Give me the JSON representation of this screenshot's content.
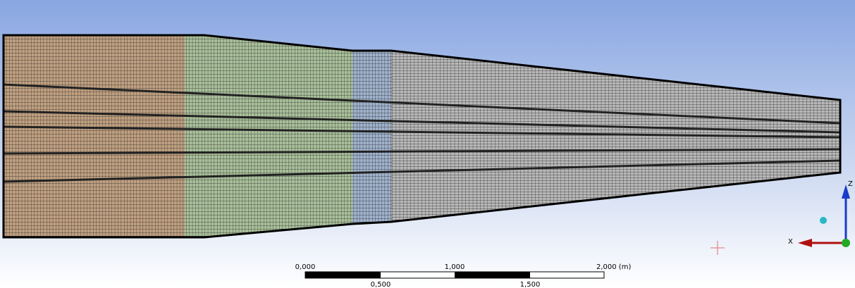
{
  "scale_bar": {
    "top_labels": [
      "0,000",
      "1,000",
      "2,000 (m)"
    ],
    "bottom_labels": [
      "0,500",
      "1,500"
    ]
  },
  "triad": {
    "z": "Z",
    "x": "X"
  }
}
